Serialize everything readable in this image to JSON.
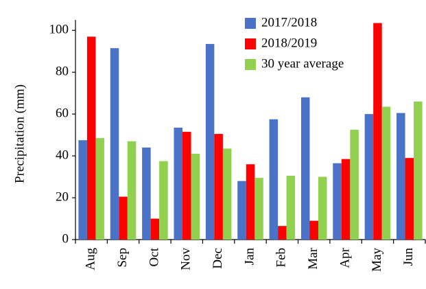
{
  "chart_data": {
    "type": "bar",
    "y_label": "Precipitation (mm)",
    "categories": [
      "Aug",
      "Sep",
      "Oct",
      "Nov",
      "Dec",
      "Jan",
      "Feb",
      "Mar",
      "Apr",
      "May",
      "Jun"
    ],
    "series": [
      {
        "name": "2017/2018",
        "color": "#4a72c6",
        "values": [
          47.5,
          91.5,
          44,
          53.5,
          93.5,
          28,
          57.5,
          68,
          36.5,
          60,
          60.5
        ]
      },
      {
        "name": "2018/2019",
        "color": "#ff0000",
        "values": [
          97,
          20.5,
          10,
          51.5,
          50.5,
          36,
          6.5,
          9,
          38.5,
          103.5,
          39
        ]
      },
      {
        "name": "30 year average",
        "color": "#92d050",
        "values": [
          48.5,
          47,
          37.5,
          41,
          43.5,
          29.5,
          30.5,
          30,
          52.5,
          63.5,
          66
        ]
      }
    ],
    "ylim": [
      0,
      105
    ],
    "yticks": [
      0,
      20,
      40,
      60,
      80,
      100
    ],
    "grid": false,
    "legend": "top"
  }
}
